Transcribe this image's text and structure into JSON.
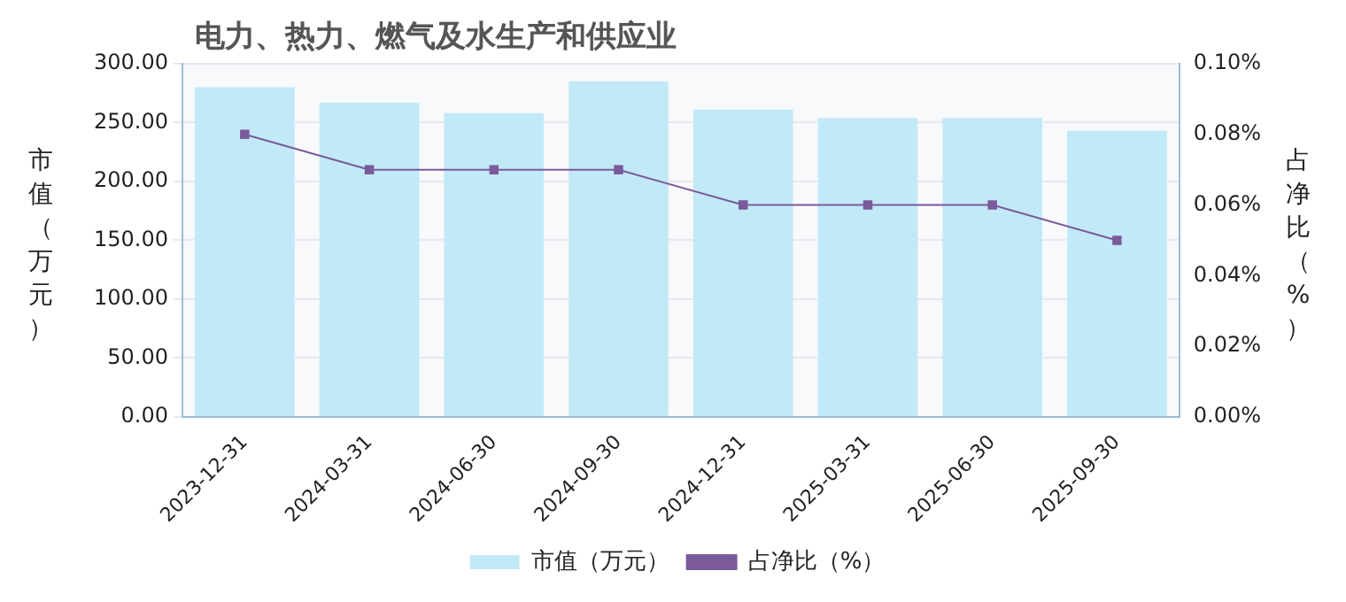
{
  "chart_data": {
    "type": "bar",
    "title": "电力、热力、燃气及水生产和供应业",
    "ylabel": "市值（万元）",
    "y2label": "占净比（%）",
    "categories": [
      "2023-12-31",
      "2024-03-31",
      "2024-06-30",
      "2024-09-30",
      "2024-12-31",
      "2025-03-31",
      "2025-06-30",
      "2025-09-30"
    ],
    "series": [
      {
        "name": "市值（万元）",
        "color": "#c2e9f7",
        "values": [
          280,
          267,
          258,
          285,
          261,
          254,
          254,
          243
        ]
      },
      {
        "name": "占净比（%）",
        "type": "line",
        "color": "#7b5a9c",
        "axis": "y2",
        "marker": "square",
        "values": [
          0.08,
          0.07,
          0.07,
          0.07,
          0.06,
          0.06,
          0.06,
          0.05
        ]
      }
    ],
    "ylim": [
      0,
      300
    ],
    "yticks": [
      {
        "value": 0,
        "label": "0.00"
      },
      {
        "value": 50,
        "label": "50.00"
      },
      {
        "value": 100,
        "label": "100.00"
      },
      {
        "value": 150,
        "label": "150.00"
      },
      {
        "value": 200,
        "label": "200.00"
      },
      {
        "value": 250,
        "label": "250.00"
      },
      {
        "value": 300,
        "label": "300.00"
      }
    ],
    "y2lim": [
      0,
      0.1
    ],
    "y2ticks": [
      {
        "value": 0,
        "label": "0.00%"
      },
      {
        "value": 0.02,
        "label": "0.02%"
      },
      {
        "value": 0.04,
        "label": "0.04%"
      },
      {
        "value": 0.06,
        "label": "0.06%"
      },
      {
        "value": 0.08,
        "label": "0.08%"
      },
      {
        "value": 0.1,
        "label": "0.10%"
      }
    ],
    "grid": "y",
    "legend": "bottom"
  }
}
